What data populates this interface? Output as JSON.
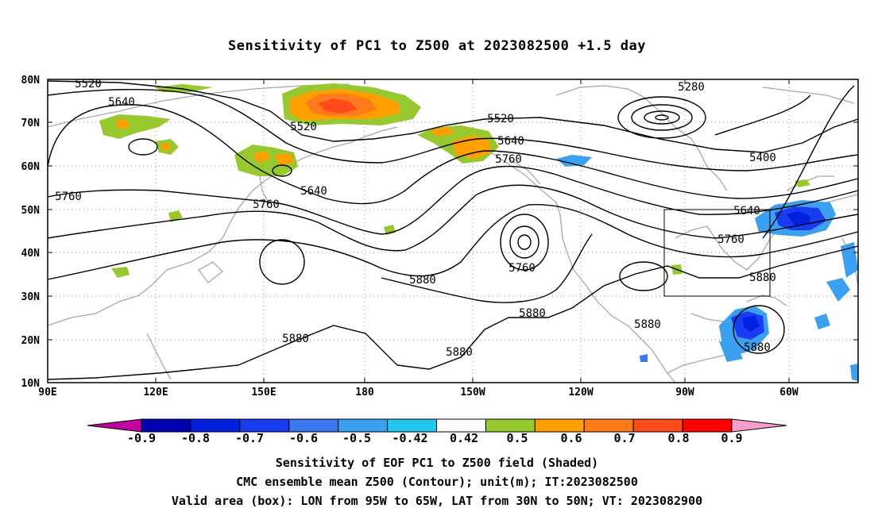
{
  "title": "Sensitivity of PC1 to Z500 at 2023082500 +1.5 day",
  "axes": {
    "lat_labels": [
      "80N",
      "70N",
      "60N",
      "50N",
      "40N",
      "30N",
      "20N",
      "10N"
    ],
    "lon_labels": [
      "90E",
      "120E",
      "150E",
      "180",
      "150W",
      "120W",
      "90W",
      "60W"
    ]
  },
  "contour_labels": [
    "5520",
    "5640",
    "5520",
    "5520",
    "5640",
    "5760",
    "5280",
    "5400",
    "5640",
    "5760",
    "5760",
    "5640",
    "5760",
    "5760",
    "5880",
    "5880",
    "5880",
    "5880",
    "5880",
    "5880",
    "5880"
  ],
  "colorbar": {
    "tick_labels": [
      "-0.9",
      "-0.8",
      "-0.7",
      "-0.6",
      "-0.5",
      "-0.42",
      "0.42",
      "0.5",
      "0.6",
      "0.7",
      "0.8",
      "0.9"
    ],
    "colors": [
      "#c000a0",
      "#0000b0",
      "#0020e0",
      "#1a3cf0",
      "#3c78f0",
      "#3ca0f0",
      "#20c8f0",
      "#ffffff",
      "#98c830",
      "#ffa000",
      "#ff7a1a",
      "#ff4a1a",
      "#ff0000",
      "#f5a0c8"
    ]
  },
  "valid_box": {
    "lon_from": "95W",
    "lon_to": "65W",
    "lat_from": "30N",
    "lat_to": "50N"
  },
  "footer": {
    "line1": "Sensitivity of EOF PC1 to Z500 field (Shaded)",
    "line2": "CMC ensemble mean Z500 (Contour); unit(m); IT:2023082500",
    "line3": "Valid area (box): LON from 95W to 65W, LAT from 30N to 50N; VT: 2023082900"
  }
}
